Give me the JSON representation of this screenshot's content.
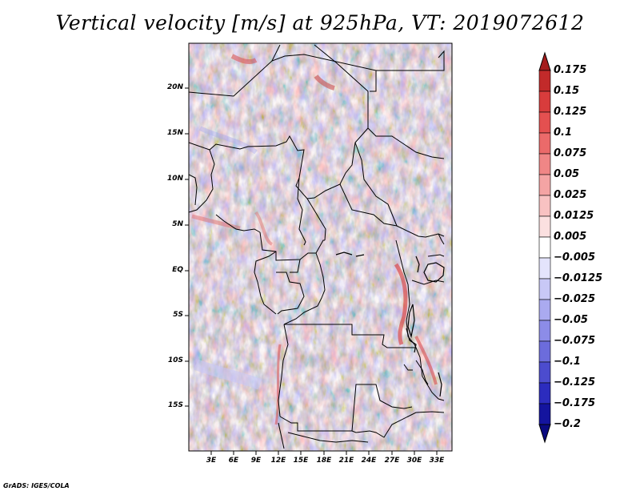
{
  "title": "Vertical velocity [m/s] at 925hPa, VT: 2019072612",
  "credit": "GrADS: IGES/COLA",
  "map": {
    "lat_labels": [
      "20N",
      "15N",
      "10N",
      "5N",
      "EQ",
      "5S",
      "10S",
      "15S"
    ],
    "lon_labels": [
      "3E",
      "6E",
      "9E",
      "12E",
      "15E",
      "18E",
      "21E",
      "24E",
      "27E",
      "30E",
      "33E"
    ]
  },
  "colorbar": {
    "levels": [
      "0.175",
      "0.15",
      "0.125",
      "0.1",
      "0.075",
      "0.05",
      "0.025",
      "0.0125",
      "0.005",
      "−0.005",
      "−0.0125",
      "−0.025",
      "−0.05",
      "−0.075",
      "−0.1",
      "−0.125",
      "−0.175",
      "−0.2"
    ],
    "colors": [
      "#a51c1c",
      "#c22a2a",
      "#d83c3c",
      "#e45050",
      "#eb6a6a",
      "#f08686",
      "#f4a4a4",
      "#f8c2c2",
      "#fbe0e0",
      "#ffffff",
      "#e4e4fc",
      "#c8c8f6",
      "#aaaaf0",
      "#8c8ce8",
      "#6c6cdc",
      "#4c4cce",
      "#2c2cbe",
      "#14149e",
      "#0a0a80"
    ]
  }
}
